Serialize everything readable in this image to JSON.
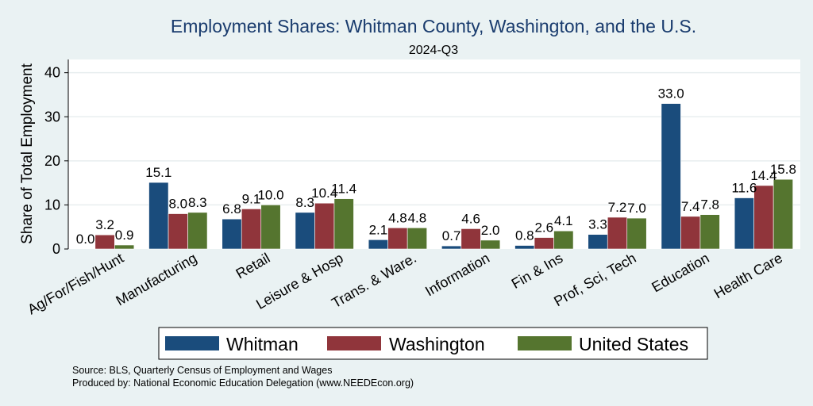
{
  "chart_data": {
    "type": "bar",
    "title": "Employment Shares: Whitman County, Washington, and the U.S.",
    "subtitle": "2024-Q3",
    "ylabel": "Share of Total Employment",
    "xlabel": "",
    "ylim": [
      0,
      43
    ],
    "yticks": [
      0,
      10,
      20,
      30,
      40
    ],
    "grid": true,
    "legend_position": "bottom",
    "categories": [
      "Ag/For/Fish/Hunt",
      "Manufacturing",
      "Retail",
      "Leisure & Hosp",
      "Trans. & Ware.",
      "Information",
      "Fin & Ins",
      "Prof, Sci, Tech",
      "Education",
      "Health Care"
    ],
    "series": [
      {
        "name": "Whitman",
        "color": "#1a4c7c",
        "values": [
          0.0,
          15.1,
          6.8,
          8.3,
          2.1,
          0.7,
          0.8,
          3.3,
          33.0,
          11.6
        ]
      },
      {
        "name": "Washington",
        "color": "#90353b",
        "values": [
          3.2,
          8.0,
          9.1,
          10.4,
          4.8,
          4.6,
          2.6,
          7.2,
          7.4,
          14.4
        ]
      },
      {
        "name": "United States",
        "color": "#55752f",
        "values": [
          0.9,
          8.3,
          10.0,
          11.4,
          4.8,
          2.0,
          4.1,
          7.0,
          7.8,
          15.8
        ]
      }
    ],
    "footer": {
      "source": "Source: BLS, Quarterly Census of Employment and Wages",
      "produced": "Produced by: National Economic Education Delegation (www.NEEDEcon.org)"
    }
  }
}
